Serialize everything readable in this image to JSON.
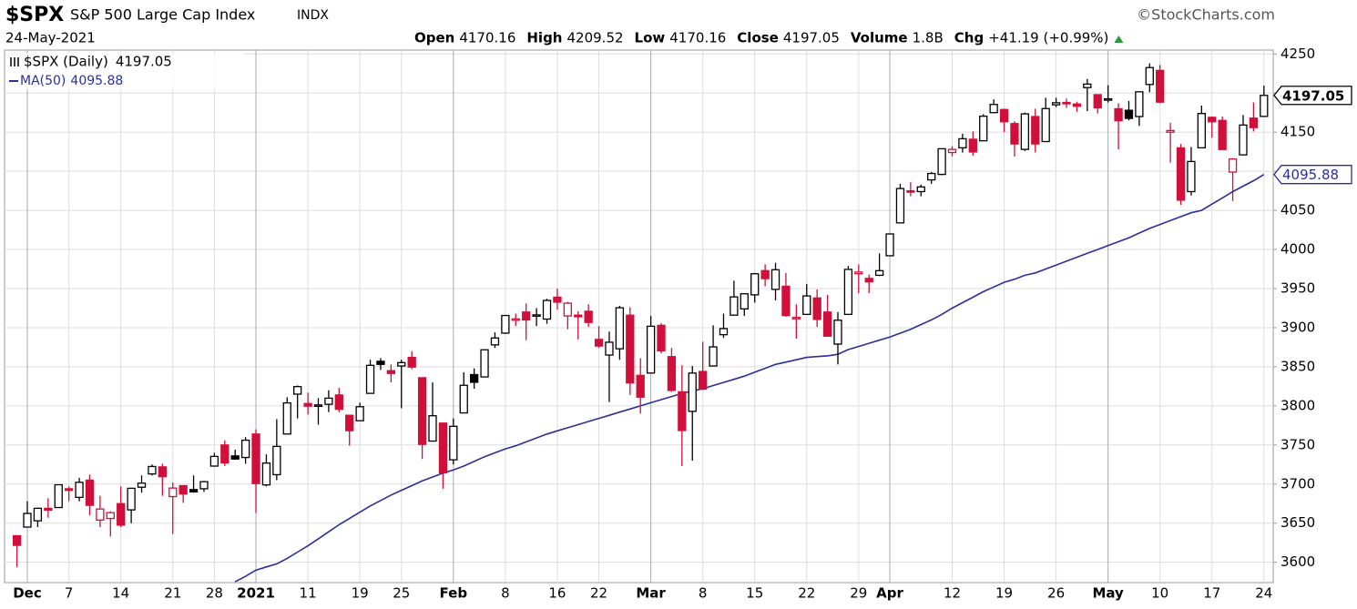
{
  "chart_data": {
    "type": "candlestick",
    "title": "$SPX",
    "subtitle": "S&P 500 Large Cap Index",
    "exchange": "INDX",
    "source": "©StockCharts.com",
    "date": "24-May-2021",
    "header_labels": {
      "open": "Open",
      "high": "High",
      "low": "Low",
      "close": "Close",
      "volume": "Volume",
      "chg": "Chg"
    },
    "volume": "1.8B",
    "chg": "+41.19 (+0.99%)",
    "price_name": "$SPX (Daily)",
    "up_color": "#000000",
    "down_color": "#d0103a",
    "categories": [
      null,
      "Dec",
      null,
      null,
      null,
      "7",
      null,
      null,
      null,
      null,
      "14",
      null,
      null,
      null,
      null,
      "21",
      null,
      null,
      null,
      "28",
      null,
      null,
      null,
      "2021",
      null,
      null,
      null,
      null,
      "11",
      null,
      null,
      null,
      null,
      "19",
      null,
      null,
      null,
      "25",
      null,
      null,
      null,
      null,
      "Feb",
      null,
      null,
      null,
      null,
      "8",
      null,
      null,
      null,
      null,
      "16",
      null,
      null,
      null,
      "22",
      null,
      null,
      null,
      null,
      "Mar",
      null,
      null,
      null,
      null,
      "8",
      null,
      null,
      null,
      null,
      "15",
      null,
      null,
      null,
      null,
      "22",
      null,
      null,
      null,
      null,
      "29",
      null,
      null,
      "Apr",
      null,
      null,
      null,
      null,
      null,
      "12",
      null,
      null,
      null,
      null,
      "19",
      null,
      null,
      null,
      null,
      "26",
      null,
      null,
      null,
      null,
      "May",
      null,
      null,
      null,
      null,
      "10",
      null,
      null,
      null,
      null,
      "17",
      null,
      null,
      null,
      null,
      "24"
    ],
    "open": [
      3634,
      3645,
      3653,
      3669,
      3670,
      3694,
      3683,
      3705,
      3654,
      3656,
      3675,
      3667,
      3696,
      3713,
      3722,
      3684,
      3698,
      3693,
      3694,
      3723,
      3750,
      3736,
      3734,
      3764,
      3699,
      3712,
      3764,
      3815,
      3803,
      3801,
      3802,
      3814,
      3788,
      3781,
      3816,
      3857,
      3845,
      3851,
      3862,
      3836,
      3755,
      3778,
      3731,
      3791,
      3840,
      3837,
      3878,
      3893,
      3910,
      3920,
      3916,
      3911,
      3939,
      3915,
      3916,
      3921,
      3885,
      3865,
      3873,
      3916,
      3839,
      3842,
      3903,
      3863,
      3818,
      3793,
      3844,
      3851,
      3891,
      3916,
      3924,
      3942,
      3973,
      3949,
      3953,
      3913,
      3917,
      3938,
      3920,
      3879,
      3917,
      3969,
      3963,
      3967,
      3992,
      4034,
      4075,
      4074,
      4089,
      4096,
      4124,
      4130,
      4141,
      4139,
      4175,
      4179,
      4161,
      4128,
      4170,
      4138,
      4185,
      4188,
      4186,
      4207,
      4198,
      4192,
      4180,
      4178,
      4170,
      4211,
      4229,
      4150,
      4130,
      4074,
      4130,
      4169,
      4165,
      4099,
      4121,
      4168,
      4170.16
    ],
    "high": [
      3634,
      3678,
      3670,
      3682,
      3699,
      3697,
      3708,
      3712,
      3685,
      3665,
      3697,
      3695,
      3711,
      3725,
      3726,
      3702,
      3698,
      3711,
      3704,
      3740,
      3756,
      3744,
      3760,
      3770,
      3738,
      3783,
      3811,
      3826,
      3817,
      3810,
      3820,
      3823,
      3788,
      3804,
      3859,
      3861,
      3853,
      3859,
      3870,
      3836,
      3830,
      3778,
      3784,
      3843,
      3848,
      3872,
      3894,
      3915,
      3918,
      3931,
      3925,
      3937,
      3950,
      3933,
      3921,
      3930,
      3902,
      3895,
      3928,
      3926,
      3861,
      3915,
      3906,
      3874,
      3852,
      3851,
      3882,
      3903,
      3918,
      3960,
      3944,
      3970,
      3981,
      3983,
      3970,
      3930,
      3956,
      3949,
      3942,
      3920,
      3979,
      3981,
      3968,
      3995,
      4020,
      4084,
      4086,
      4083,
      4099,
      4129,
      4132,
      4148,
      4151,
      4173,
      4192,
      4180,
      4164,
      4175,
      4180,
      4194,
      4194,
      4193,
      4189,
      4218,
      4198,
      4210,
      4187,
      4190,
      4202,
      4238,
      4236,
      4162,
      4135,
      4131,
      4184,
      4170,
      4170,
      4117,
      4172,
      4188,
      4209.52
    ],
    "low": [
      3594,
      3645,
      3645,
      3657,
      3670,
      3678,
      3678,
      3660,
      3645,
      3633,
      3645,
      3650,
      3689,
      3711,
      3685,
      3636,
      3676,
      3689,
      3690,
      3723,
      3723,
      3731,
      3726,
      3663,
      3697,
      3705,
      3764,
      3784,
      3789,
      3776,
      3792,
      3792,
      3749,
      3781,
      3816,
      3846,
      3830,
      3797,
      3847,
      3732,
      3755,
      3694,
      3725,
      3791,
      3822,
      3837,
      3874,
      3892,
      3902,
      3884,
      3902,
      3905,
      3923,
      3898,
      3885,
      3901,
      3874,
      3805,
      3859,
      3814,
      3790,
      3842,
      3867,
      3818,
      3723,
      3730,
      3820,
      3851,
      3887,
      3916,
      3915,
      3932,
      3953,
      3935,
      3914,
      3886,
      3917,
      3901,
      3889,
      3853,
      3917,
      3944,
      3944,
      3966,
      3992,
      4034,
      4068,
      4068,
      4084,
      4095,
      4119,
      4124,
      4120,
      4139,
      4175,
      4150,
      4119,
      4126,
      4124,
      4138,
      4182,
      4181,
      4176,
      4177,
      4174,
      4188,
      4128,
      4165,
      4158,
      4201,
      4187,
      4111,
      4057,
      4069,
      4130,
      4143,
      4128,
      4062,
      4121,
      4151,
      4170.16
    ],
    "close": [
      3621.63,
      3662.45,
      3669.01,
      3666.72,
      3699.12,
      3691.96,
      3702.25,
      3672.82,
      3668.1,
      3663.46,
      3647.49,
      3694.62,
      3701.17,
      3722.48,
      3709.41,
      3694.92,
      3687.26,
      3690.01,
      3703.06,
      3735.36,
      3727.04,
      3732.04,
      3756.07,
      3700.65,
      3726.86,
      3748.14,
      3803.79,
      3824.68,
      3799.61,
      3801.19,
      3809.84,
      3795.54,
      3768.25,
      3798.91,
      3851.85,
      3853.07,
      3841.47,
      3855.36,
      3849.62,
      3750.77,
      3787.38,
      3714.24,
      3773.86,
      3826.31,
      3830.17,
      3871.74,
      3886.83,
      3915.59,
      3911.23,
      3909.88,
      3916.38,
      3934.83,
      3932.59,
      3931.33,
      3913.97,
      3906.71,
      3876.5,
      3881.37,
      3925.43,
      3829.34,
      3811.15,
      3901.82,
      3870.29,
      3819.72,
      3768.47,
      3841.94,
      3821.35,
      3875.44,
      3898.81,
      3939.34,
      3943.34,
      3968.94,
      3962.71,
      3974.12,
      3915.46,
      3913.1,
      3940.59,
      3910.52,
      3889.14,
      3909.52,
      3974.54,
      3971.09,
      3958.55,
      3972.89,
      4019.87,
      4077.91,
      4073.94,
      4079.95,
      4097.17,
      4128.8,
      4127.99,
      4141.59,
      4124.66,
      4170.42,
      4185.47,
      4163.26,
      4134.94,
      4173.42,
      4134.98,
      4180.17,
      4187.62,
      4186.72,
      4183.18,
      4211.47,
      4181.17,
      4192.66,
      4164.66,
      4167.59,
      4201.62,
      4232.6,
      4188.43,
      4152.1,
      4063.04,
      4112.5,
      4173.85,
      4163.29,
      4127.83,
      4115.68,
      4159.12,
      4155.86,
      4197.05
    ],
    "ma": {
      "name": "MA(50)",
      "color": "#2b2f9c",
      "values": [
        null,
        null,
        null,
        null,
        null,
        null,
        null,
        null,
        null,
        null,
        null,
        null,
        null,
        null,
        null,
        null,
        null,
        null,
        null,
        null,
        null,
        3575,
        3582,
        3590,
        3594,
        3598,
        3605,
        3613,
        3621,
        3630,
        3639,
        3648,
        3656,
        3664,
        3672,
        3679,
        3686,
        3692,
        3698,
        3704,
        3709,
        3714,
        3718,
        3723,
        3729,
        3735,
        3740,
        3745,
        3749,
        3754,
        3759,
        3764,
        3768,
        3772,
        3776,
        3780,
        3784,
        3788,
        3792,
        3796,
        3800,
        3804,
        3808,
        3812,
        3816,
        3819,
        3822,
        3826,
        3830,
        3834,
        3838,
        3843,
        3848,
        3853,
        3856,
        3859,
        3862,
        3863,
        3864,
        3866,
        3872,
        3876,
        3880,
        3884,
        3888,
        3893,
        3898,
        3904,
        3910,
        3917,
        3925,
        3932,
        3939,
        3946,
        3952,
        3958,
        3962,
        3967,
        3970,
        3975,
        3980,
        3985,
        3990,
        3995,
        4000,
        4005,
        4010,
        4015,
        4021,
        4027,
        4032,
        4037,
        4042,
        4047,
        4050,
        4058,
        4066,
        4074,
        4081,
        4088,
        4095.88
      ]
    },
    "ylim": [
      3574,
      4255
    ],
    "yticks": [
      3600,
      3650,
      3700,
      3750,
      3800,
      3850,
      3900,
      3950,
      4000,
      4050,
      4100,
      4150,
      4200,
      4250
    ],
    "grid": true
  }
}
